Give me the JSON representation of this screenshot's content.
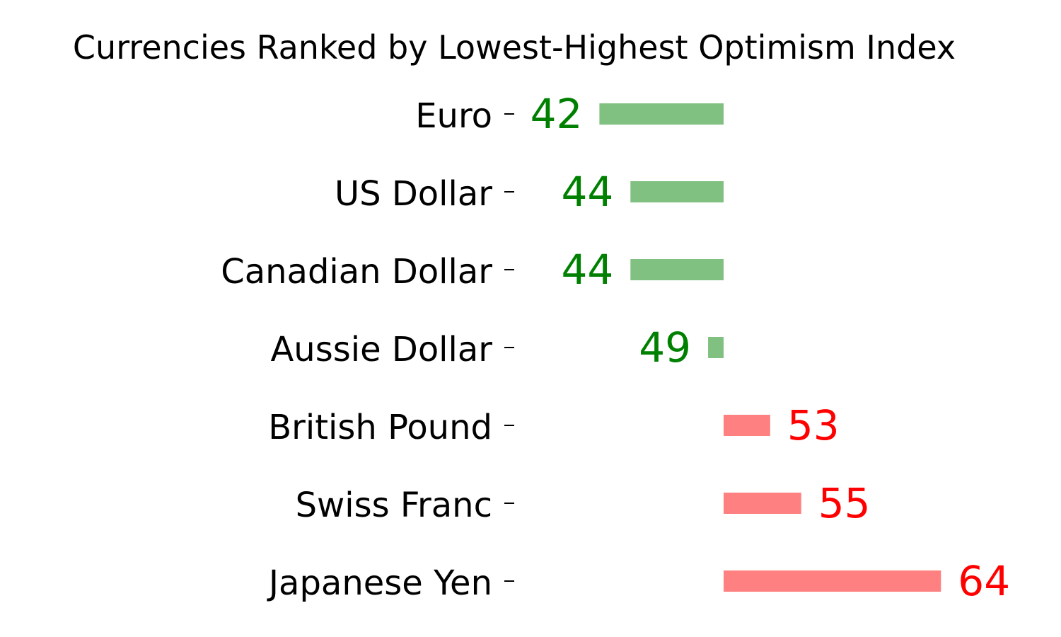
{
  "chart_data": {
    "type": "bar",
    "orientation": "horizontal",
    "title": "Currencies Ranked by Lowest-Highest Optimism Index",
    "categories": [
      "Euro",
      "US Dollar",
      "Canadian Dollar",
      "Aussie Dollar",
      "British Pound",
      "Swiss Franc",
      "Japanese Yen"
    ],
    "values": [
      42,
      44,
      44,
      49,
      53,
      55,
      64
    ],
    "baseline": 50,
    "xlim": [
      35,
      70
    ],
    "grid": false,
    "colors": {
      "below_bar": "#80c080",
      "below_text": "#008000",
      "above_bar": "#ff8080",
      "above_text": "#ff0000"
    }
  }
}
